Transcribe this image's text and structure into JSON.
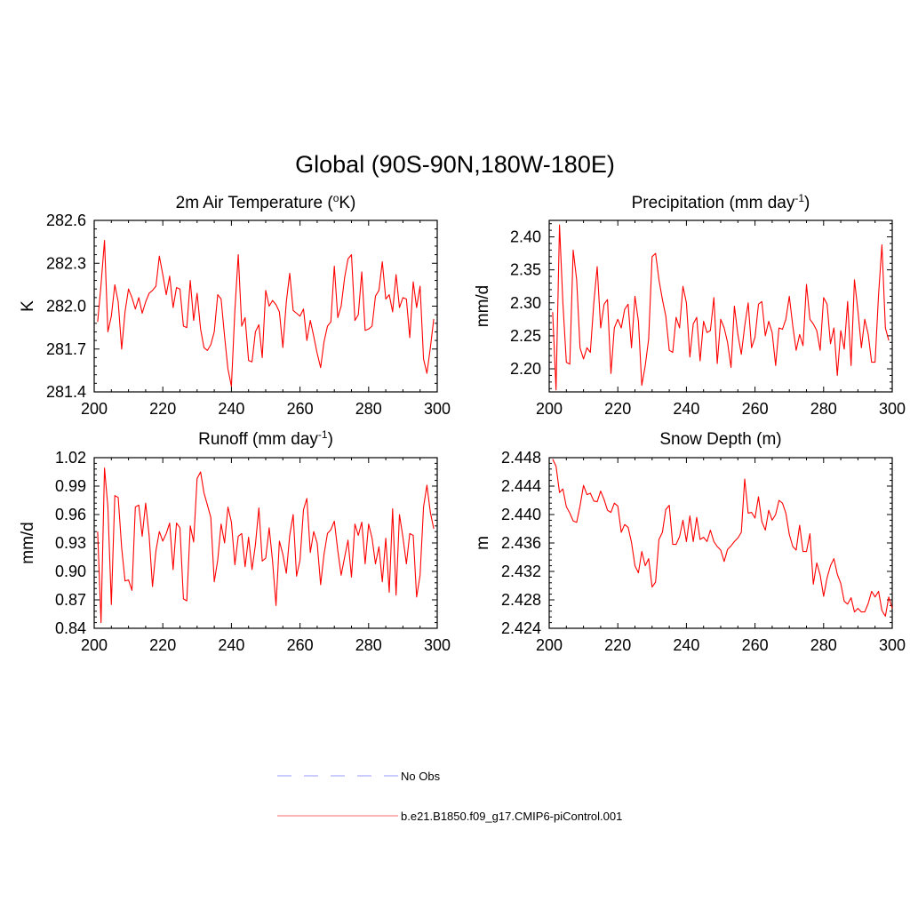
{
  "figure": {
    "title": "Global (90S-90N,180W-180E)"
  },
  "legend": [
    {
      "label": "No Obs",
      "color": "#9999ff",
      "style": "dashed"
    },
    {
      "label": "b.e21.B1850.f09_g17.CMIP6-piControl.001",
      "color": "#ff6666",
      "style": "solid"
    }
  ],
  "chart_data": [
    {
      "type": "line",
      "title_main": "2m Air Temperature (",
      "title_sup": "o",
      "title_tail": "K)",
      "ylabel": "K",
      "xlim": [
        200,
        300
      ],
      "ylim": [
        281.4,
        282.6
      ],
      "xticks": [
        "200",
        "220",
        "240",
        "260",
        "280",
        "300"
      ],
      "yticks": [
        "281.4",
        "281.7",
        "282.0",
        "282.3",
        "282.6"
      ],
      "line_color": "#ff0000",
      "x_start": 201,
      "values": [
        281.89,
        282.15,
        282.46,
        281.82,
        281.93,
        282.15,
        282.03,
        281.7,
        281.96,
        282.12,
        282.06,
        281.98,
        282.06,
        281.95,
        282.03,
        282.09,
        282.11,
        282.14,
        282.35,
        282.22,
        282.08,
        282.21,
        281.99,
        282.13,
        282.12,
        281.86,
        281.85,
        282.18,
        281.9,
        282.09,
        281.84,
        281.71,
        281.69,
        281.73,
        281.82,
        282.08,
        282.05,
        281.79,
        281.56,
        281.44,
        281.97,
        282.36,
        281.86,
        281.92,
        281.62,
        281.61,
        281.82,
        281.87,
        281.64,
        282.11,
        282.0,
        282.04,
        282.01,
        281.96,
        281.71,
        282.03,
        282.23,
        281.97,
        281.95,
        281.93,
        281.98,
        281.76,
        281.9,
        281.79,
        281.67,
        281.57,
        281.75,
        281.86,
        281.89,
        282.28,
        281.92,
        282.0,
        282.2,
        282.33,
        282.36,
        281.9,
        281.94,
        282.24,
        281.83,
        281.84,
        281.86,
        282.07,
        282.11,
        282.31,
        282.05,
        282.08,
        281.96,
        282.22,
        281.99,
        282.06,
        282.05,
        281.78,
        282.17,
        281.99,
        282.14,
        281.63,
        281.53,
        281.71,
        281.91
      ]
    },
    {
      "type": "line",
      "title_main": "Precipitation (mm day",
      "title_sup": "-1",
      "title_tail": ")",
      "ylabel": "mm/d",
      "xlim": [
        200,
        300
      ],
      "ylim": [
        2.165,
        2.425
      ],
      "xticks": [
        "200",
        "220",
        "240",
        "260",
        "280",
        "300"
      ],
      "yticks": [
        "2.20",
        "2.25",
        "2.30",
        "2.35",
        "2.40"
      ],
      "line_color": "#ff0000",
      "x_start": 201,
      "values": [
        2.286,
        2.168,
        2.418,
        2.3,
        2.21,
        2.207,
        2.38,
        2.335,
        2.232,
        2.215,
        2.232,
        2.225,
        2.3,
        2.355,
        2.262,
        2.298,
        2.305,
        2.193,
        2.262,
        2.275,
        2.262,
        2.29,
        2.298,
        2.232,
        2.31,
        2.272,
        2.175,
        2.205,
        2.245,
        2.37,
        2.375,
        2.335,
        2.305,
        2.28,
        2.228,
        2.225,
        2.278,
        2.262,
        2.325,
        2.3,
        2.218,
        2.268,
        2.278,
        2.212,
        2.272,
        2.255,
        2.258,
        2.308,
        2.208,
        2.275,
        2.262,
        2.24,
        2.202,
        2.295,
        2.252,
        2.222,
        2.265,
        2.3,
        2.232,
        2.248,
        2.298,
        2.302,
        2.25,
        2.272,
        2.255,
        2.205,
        2.262,
        2.26,
        2.275,
        2.31,
        2.265,
        2.228,
        2.252,
        2.235,
        2.328,
        2.275,
        2.268,
        2.258,
        2.228,
        2.308,
        2.298,
        2.238,
        2.262,
        2.19,
        2.258,
        2.23,
        2.302,
        2.205,
        2.335,
        2.288,
        2.232,
        2.275,
        2.252,
        2.21,
        2.21,
        2.312,
        2.388,
        2.262,
        2.243
      ]
    },
    {
      "type": "line",
      "title_main": "Runoff (mm day",
      "title_sup": "-1",
      "title_tail": ")",
      "ylabel": "mm/d",
      "xlim": [
        200,
        300
      ],
      "ylim": [
        0.84,
        1.02
      ],
      "xticks": [
        "200",
        "220",
        "240",
        "260",
        "280",
        "300"
      ],
      "yticks": [
        "0.84",
        "0.87",
        "0.90",
        "0.93",
        "0.96",
        "0.99",
        "1.02"
      ],
      "line_color": "#ff0000",
      "x_start": 201,
      "values": [
        0.942,
        0.846,
        1.009,
        0.968,
        0.865,
        0.98,
        0.978,
        0.925,
        0.89,
        0.891,
        0.88,
        0.968,
        0.97,
        0.937,
        0.972,
        0.938,
        0.884,
        0.922,
        0.942,
        0.932,
        0.94,
        0.951,
        0.902,
        0.951,
        0.946,
        0.871,
        0.869,
        0.948,
        0.931,
        0.998,
        1.005,
        0.983,
        0.97,
        0.957,
        0.889,
        0.912,
        0.95,
        0.93,
        0.968,
        0.952,
        0.907,
        0.937,
        0.94,
        0.905,
        0.936,
        0.902,
        0.928,
        0.967,
        0.911,
        0.914,
        0.946,
        0.911,
        0.864,
        0.932,
        0.918,
        0.898,
        0.938,
        0.96,
        0.895,
        0.912,
        0.965,
        0.977,
        0.92,
        0.942,
        0.93,
        0.886,
        0.918,
        0.94,
        0.944,
        0.953,
        0.922,
        0.896,
        0.915,
        0.933,
        0.894,
        0.95,
        0.938,
        0.952,
        0.908,
        0.95,
        0.935,
        0.908,
        0.926,
        0.889,
        0.935,
        0.878,
        0.966,
        0.875,
        0.96,
        0.936,
        0.908,
        0.94,
        0.938,
        0.873,
        0.896,
        0.968,
        0.991,
        0.962,
        0.945
      ]
    },
    {
      "type": "line",
      "title_main": "Snow Depth (m)",
      "title_sup": "",
      "title_tail": "",
      "ylabel": "m",
      "xlim": [
        200,
        300
      ],
      "ylim": [
        2.424,
        2.448
      ],
      "xticks": [
        "200",
        "220",
        "240",
        "260",
        "280",
        "300"
      ],
      "yticks": [
        "2.424",
        "2.428",
        "2.432",
        "2.436",
        "2.440",
        "2.444",
        "2.448"
      ],
      "line_color": "#ff0000",
      "x_start": 201,
      "values": [
        2.4478,
        2.4468,
        2.4431,
        2.4436,
        2.4411,
        2.4402,
        2.4391,
        2.4389,
        2.4412,
        2.4441,
        2.4428,
        2.443,
        2.4419,
        2.4418,
        2.4433,
        2.4421,
        2.4406,
        2.4403,
        2.4416,
        2.4412,
        2.4375,
        2.4386,
        2.4382,
        2.4361,
        2.4328,
        2.4318,
        2.4348,
        2.4328,
        2.4338,
        2.4298,
        2.4305,
        2.4365,
        2.4375,
        2.4407,
        2.4413,
        2.4358,
        2.4358,
        2.4369,
        2.4392,
        2.4362,
        2.4398,
        2.4362,
        2.4396,
        2.4365,
        2.4368,
        2.4362,
        2.4378,
        2.4362,
        2.4355,
        2.435,
        2.4334,
        2.4351,
        2.4356,
        2.4362,
        2.4367,
        2.4375,
        2.445,
        2.4402,
        2.4403,
        2.4395,
        2.4425,
        2.439,
        2.4378,
        2.4406,
        2.4392,
        2.44,
        2.442,
        2.4416,
        2.4402,
        2.4372,
        2.4355,
        2.435,
        2.4385,
        2.4348,
        2.4348,
        2.4373,
        2.4302,
        2.4332,
        2.4315,
        2.4285,
        2.4311,
        2.4328,
        2.4338,
        2.4316,
        2.4303,
        2.4278,
        2.4274,
        2.4283,
        2.4263,
        2.4268,
        2.4263,
        2.4263,
        2.4275,
        2.4292,
        2.4284,
        2.4292,
        2.4265,
        2.4257,
        2.4284,
        2.4268
      ]
    }
  ]
}
